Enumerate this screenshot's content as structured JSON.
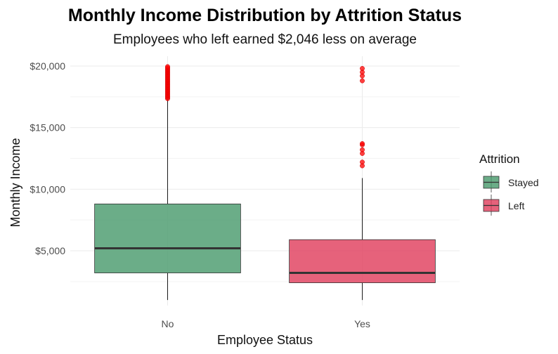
{
  "chart_data": {
    "type": "box",
    "title": "Monthly Income Distribution by Attrition Status",
    "subtitle": "Employees who left earned $2,046 less on average",
    "xlabel": "Employee Status",
    "ylabel": "Monthly Income",
    "ylim": [
      0,
      20600
    ],
    "y_ticks": [
      5000,
      10000,
      15000,
      20000
    ],
    "y_tick_labels": [
      "$5,000",
      "$10,000",
      "$15,000",
      "$20,000"
    ],
    "grid": true,
    "legend": {
      "title": "Attrition",
      "placement": "right",
      "entries": [
        "Stayed",
        "Left"
      ]
    },
    "categories": [
      "No",
      "Yes"
    ],
    "series": [
      {
        "name": "Stayed",
        "category": "No",
        "color": "#4a9b6e",
        "whisker_low": 1000,
        "q1": 3200,
        "median": 5200,
        "q3": 8800,
        "whisker_high": 17300,
        "outliers": [
          17350,
          17450,
          17550,
          17650,
          17750,
          17850,
          17950,
          18050,
          18150,
          18250,
          18350,
          18450,
          18550,
          18650,
          18750,
          18850,
          18950,
          19050,
          19150,
          19250,
          19350,
          19450,
          19550,
          19650,
          19750,
          19850,
          19950
        ]
      },
      {
        "name": "Left",
        "category": "Yes",
        "color": "#e0405e",
        "whisker_low": 1000,
        "q1": 2400,
        "median": 3200,
        "q3": 5900,
        "whisker_high": 10900,
        "outliers": [
          11900,
          12200,
          12900,
          13200,
          13600,
          13700,
          18800,
          19200,
          19500,
          19800
        ]
      }
    ],
    "outlier_color": "#ff0000"
  }
}
